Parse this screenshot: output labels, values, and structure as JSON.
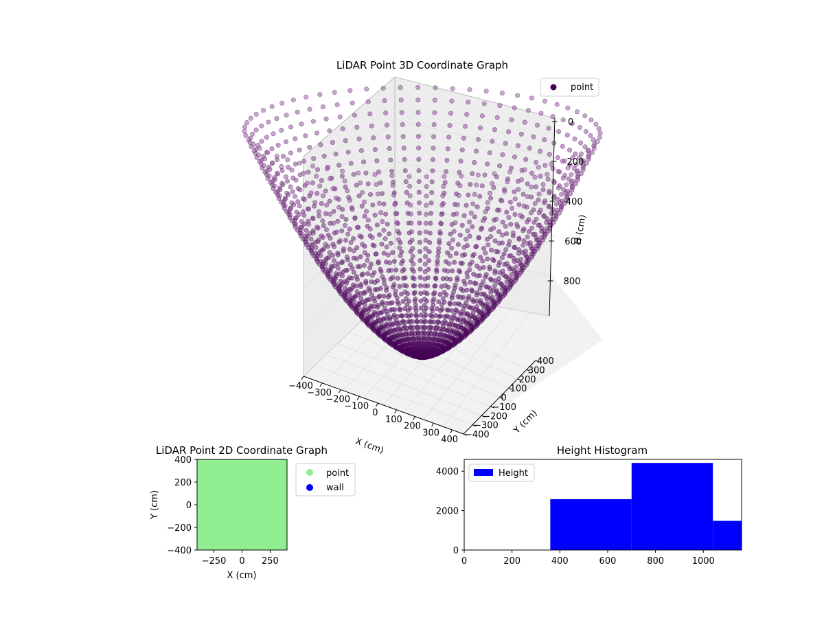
{
  "chart_data": [
    {
      "type": "scatter3d",
      "title": "LiDAR Point 3D Coordinate Graph",
      "xlabel": "X (cm)",
      "ylabel": "Y (cm)",
      "zlabel": "H (cm)",
      "xticks": [
        "−400",
        "−300",
        "−200",
        "−100",
        "0",
        "100",
        "200",
        "300",
        "400"
      ],
      "yticks": [
        "−400",
        "−300",
        "−200",
        "−100",
        "0",
        "100",
        "200",
        "300",
        "400"
      ],
      "zticks": [
        "0",
        "200",
        "400",
        "600",
        "800"
      ],
      "xlim": [
        -400,
        400
      ],
      "ylim": [
        -400,
        400
      ],
      "zlim": [
        0,
        1000
      ],
      "legend": [
        "point"
      ],
      "legend_position": "top-right",
      "colormap": "viridis (purple range)",
      "colors": {
        "point": "#440154"
      }
    },
    {
      "type": "scatter",
      "title": "LiDAR Point 2D Coordinate Graph",
      "xlabel": "X (cm)",
      "ylabel": "Y (cm)",
      "xlim": [
        -400,
        400
      ],
      "ylim": [
        -400,
        400
      ],
      "xticks": [
        "−250",
        "0",
        "250"
      ],
      "yticks": [
        "400",
        "200",
        "0",
        "−200",
        "−400"
      ],
      "series": [
        {
          "name": "point",
          "color": "#90ee90"
        },
        {
          "name": "wall",
          "color": "#0000ff"
        }
      ],
      "legend_position": "outside-right"
    },
    {
      "type": "bar",
      "title": "Height Histogram",
      "xlim": [
        0,
        1160
      ],
      "ylim": [
        0,
        4600
      ],
      "xticks": [
        "0",
        "200",
        "400",
        "600",
        "800",
        "1000"
      ],
      "yticks": [
        "4000",
        "2000",
        "0"
      ],
      "bins": [
        {
          "x0": 360,
          "x1": 700,
          "value": 2580
        },
        {
          "x0": 700,
          "x1": 1040,
          "value": 4420
        },
        {
          "x0": 1040,
          "x1": 1160,
          "value": 1480
        }
      ],
      "series": [
        {
          "name": "Height",
          "color": "#0000ff"
        }
      ],
      "legend_position": "top-left"
    }
  ]
}
